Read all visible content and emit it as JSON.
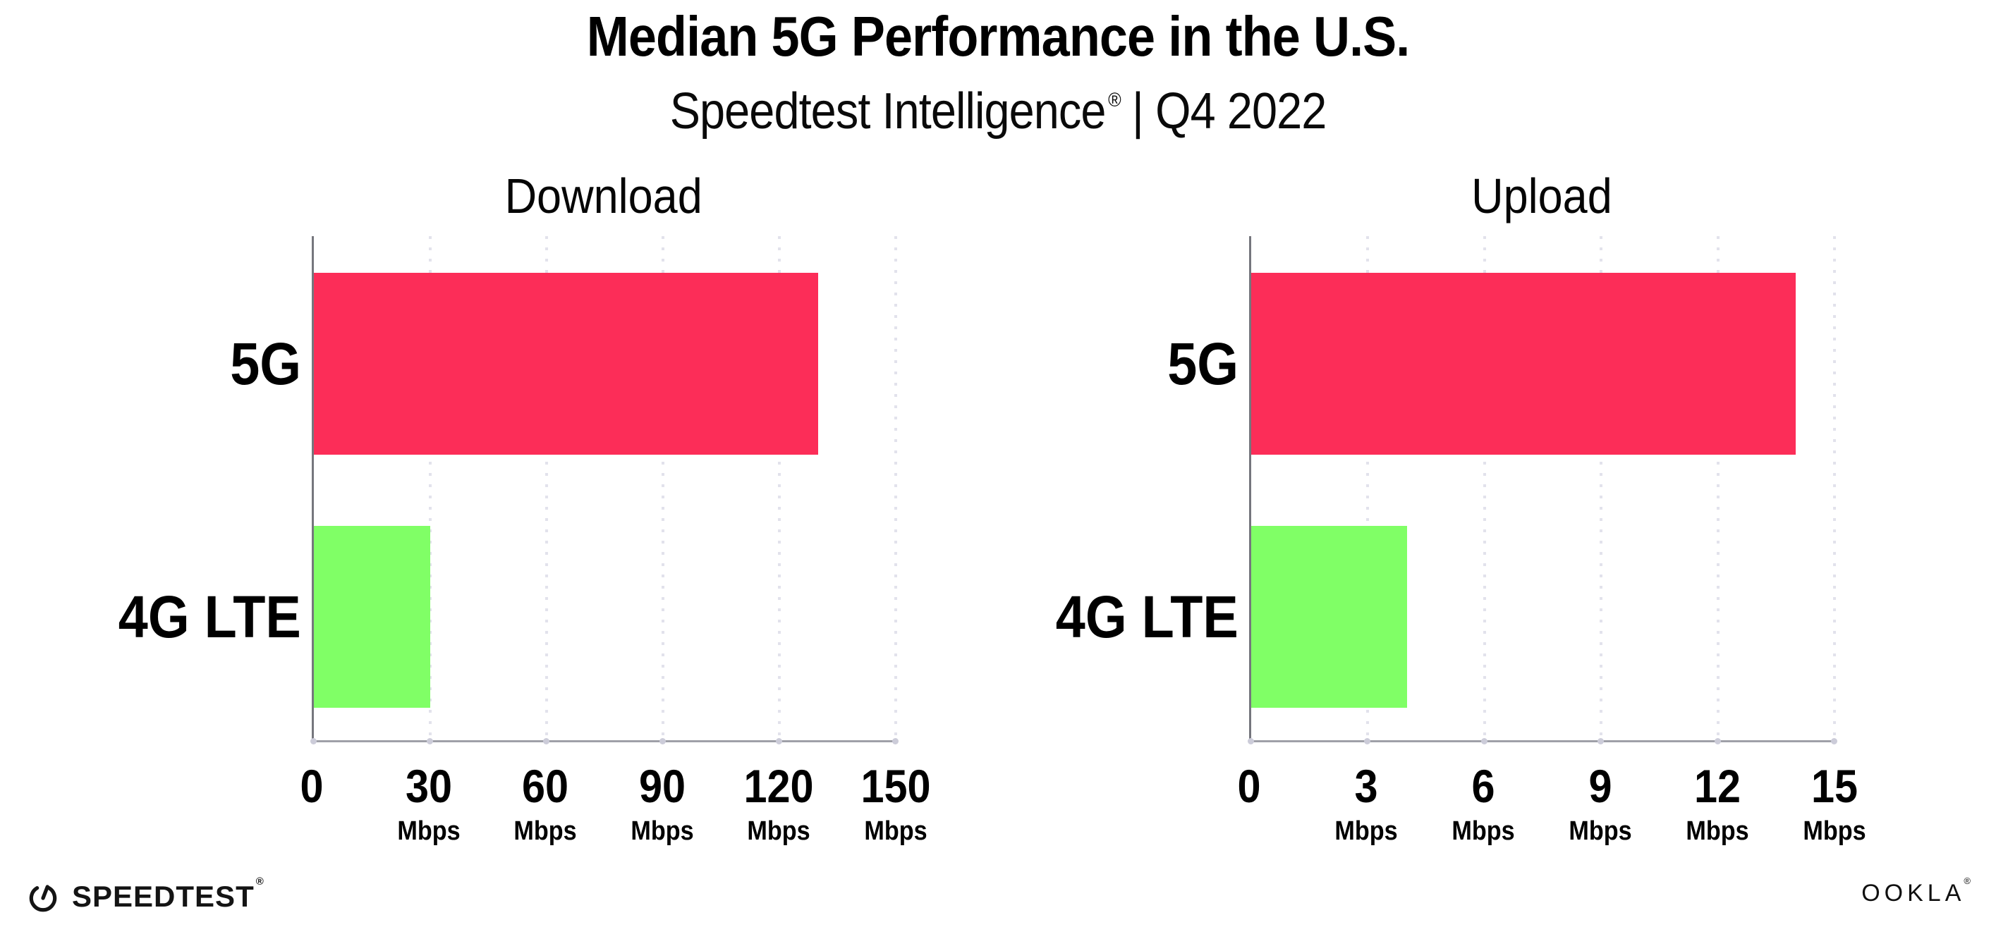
{
  "header": {
    "title": "Median 5G Performance in the U.S.",
    "subtitle_brand": "Speedtest Intelligence",
    "subtitle_reg": "®",
    "subtitle_period": "| Q4 2022"
  },
  "chart_data": [
    {
      "type": "bar",
      "orientation": "horizontal",
      "title": "Download",
      "categories": [
        "5G",
        "4G LTE"
      ],
      "values": [
        130,
        30
      ],
      "unit": "Mbps",
      "xlim": [
        0,
        150
      ],
      "xticks": [
        0,
        30,
        60,
        90,
        120,
        150
      ],
      "bar_colors": [
        "#FC2D58",
        "#80FF66"
      ],
      "grid": "vertical-dotted",
      "legend": "none"
    },
    {
      "type": "bar",
      "orientation": "horizontal",
      "title": "Upload",
      "categories": [
        "5G",
        "4G LTE"
      ],
      "values": [
        14,
        4
      ],
      "unit": "Mbps",
      "xlim": [
        0,
        15
      ],
      "xticks": [
        0,
        3,
        6,
        9,
        12,
        15
      ],
      "bar_colors": [
        "#FC2D58",
        "#80FF66"
      ],
      "grid": "vertical-dotted",
      "legend": "none"
    }
  ],
  "footer": {
    "speedtest_label": "SPEEDTEST",
    "speedtest_reg": "®",
    "ookla_label": "OOKLA",
    "ookla_reg": "®",
    "gauge_icon": "speedtest-gauge",
    "brand_dark": "#141414"
  },
  "style": {
    "background": "#FFFFFF",
    "bar_red": "#FC2D58",
    "bar_green": "#80FF66",
    "gridline_color": "#E2E2EC",
    "axis_color": "#9FA0A8",
    "spine_color": "#75767D"
  }
}
